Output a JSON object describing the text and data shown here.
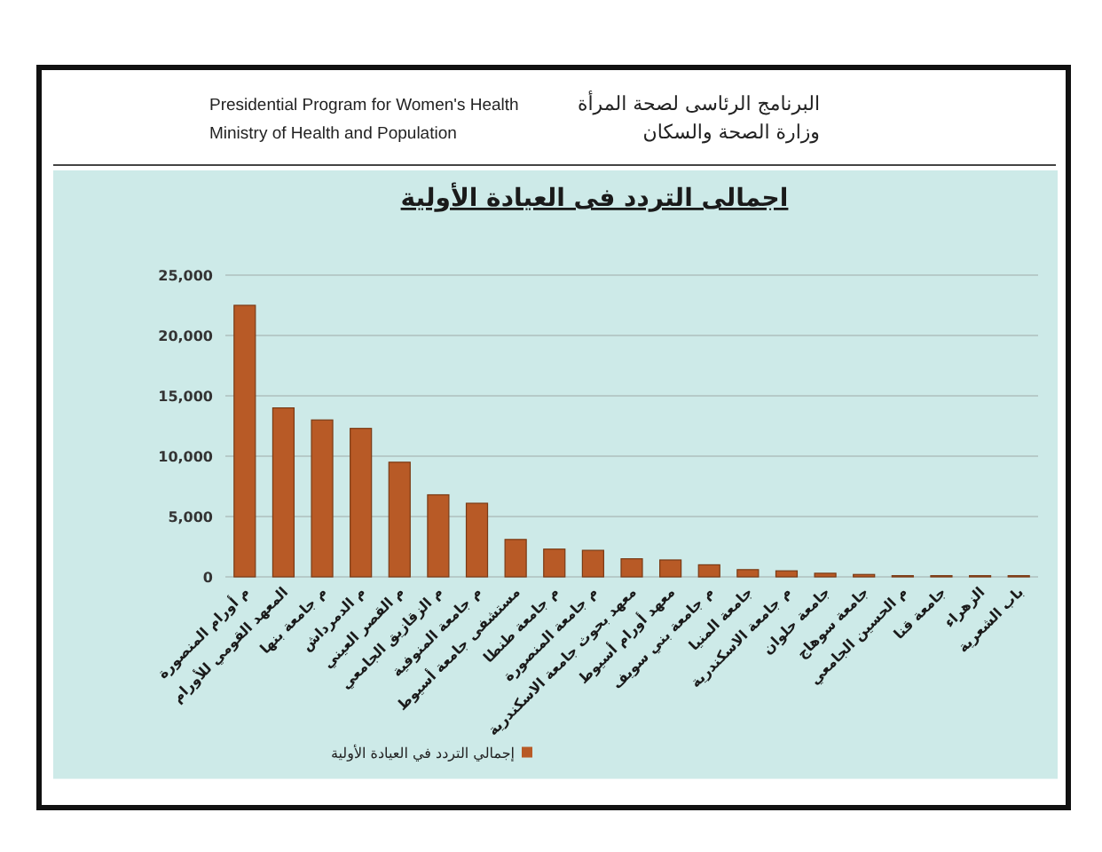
{
  "chart_data": {
    "type": "bar",
    "title": "اجمالى التردد فى العيادة الأولية",
    "categories": [
      "م أورام المنصورة",
      "المعهد القومي للأورام",
      "م جامعة بنها",
      "م الدمرداش",
      "م القصر العيني",
      "م الزقازيق الجامعي",
      "م جامعة المنوفية",
      "مستشفى جامعة أسيوط",
      "م جامعة طنطا",
      "م جامعة المنصورة",
      "معهد بحوث جامعة الاسكندرية",
      "معهد أورام أسيوط",
      "م جامعة بني سويف",
      "جامعة المنيا",
      "م جامعة الاسكندرية",
      "جامعة حلوان",
      "جامعة سوهاج",
      "م الحسين الجامعي",
      "جامعة قنا",
      "الزهراء",
      "باب الشعرية"
    ],
    "series": [
      {
        "name": "إجمالي التردد في العيادة الأولية",
        "color": "#b85a26",
        "values": [
          22500,
          14000,
          13000,
          12300,
          9500,
          6800,
          6100,
          3100,
          2300,
          2200,
          1500,
          1400,
          1000,
          600,
          500,
          300,
          200,
          100,
          100,
          100,
          100
        ]
      }
    ],
    "ylim": [
      0,
      25000
    ],
    "yticks": [
      0,
      {
        "value": 5000,
        "label": "5,000"
      },
      {
        "value": 10000,
        "label": "10,000"
      },
      {
        "value": 15000,
        "label": "15,000"
      },
      {
        "value": 20000,
        "label": "20,000"
      },
      {
        "value": 25000,
        "label": "25,000"
      }
    ],
    "grid": "y",
    "legend": "bottom",
    "annotations": [
      "Presidential Program for Women's Health",
      "Ministry of Health and Population",
      "البرنامج الرئاسى لصحة المرأة",
      "وزارة الصحة والسكان"
    ]
  }
}
